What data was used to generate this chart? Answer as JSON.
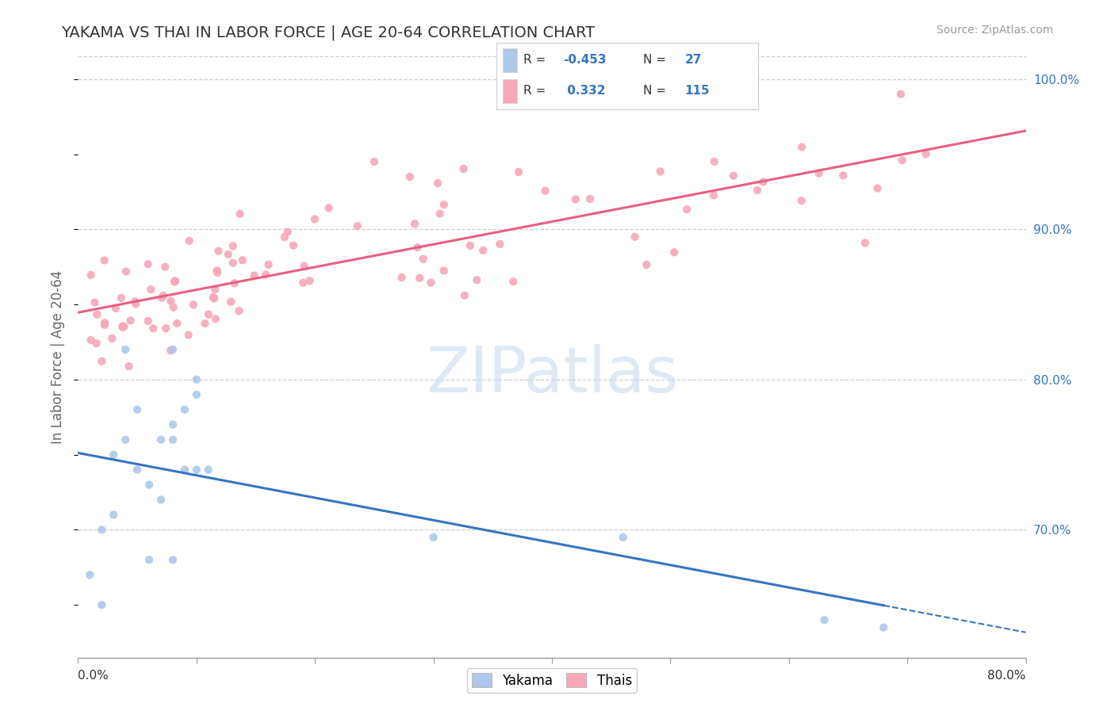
{
  "title": "YAKAMA VS THAI IN LABOR FORCE | AGE 20-64 CORRELATION CHART",
  "source_text": "Source: ZipAtlas.com",
  "ylabel": "In Labor Force | Age 20-64",
  "yakama_R": -0.453,
  "yakama_N": 27,
  "thai_R": 0.332,
  "thai_N": 115,
  "yakama_color": "#adc8e8",
  "thai_color": "#f5a8b8",
  "yakama_line_color": "#3575c0",
  "thai_line_color": "#e86080",
  "legend_text_color": "#3575c0",
  "watermark_color": "#c5d8ed",
  "xmin": 0.0,
  "xmax": 0.8,
  "ymin": 0.615,
  "ymax": 1.015,
  "ytick_positions": [
    0.7,
    0.8,
    0.9,
    1.0
  ],
  "ytick_labels": [
    "70.0%",
    "80.0%",
    "90.0%",
    "100.0%"
  ],
  "background_color": "#ffffff",
  "grid_color": "#cccccc",
  "title_color": "#333333",
  "source_color": "#999999",
  "axis_label_color": "#666666"
}
